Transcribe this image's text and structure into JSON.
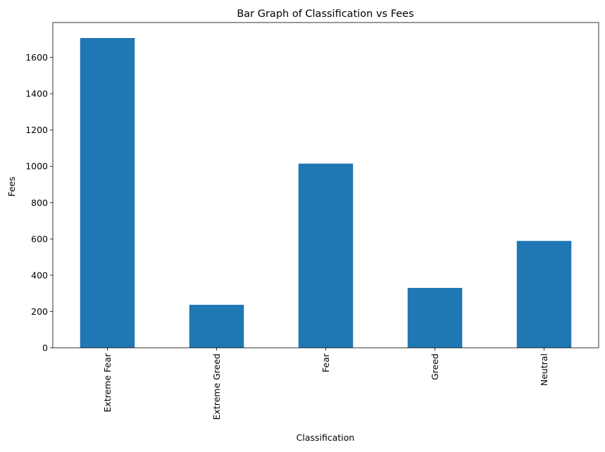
{
  "chart_data": {
    "type": "bar",
    "title": "Bar Graph of Classification vs Fees",
    "xlabel": "Classification",
    "ylabel": "Fees",
    "categories": [
      "Extreme Fear",
      "Extreme Greed",
      "Fear",
      "Greed",
      "Neutral"
    ],
    "values": [
      1707,
      237,
      1015,
      330,
      589
    ],
    "ylim": [
      0,
      1707
    ],
    "yticks": [
      0,
      200,
      400,
      600,
      800,
      1000,
      1200,
      1400,
      1600
    ],
    "bar_color": "#1f77b4",
    "grid": false,
    "legend": false
  }
}
